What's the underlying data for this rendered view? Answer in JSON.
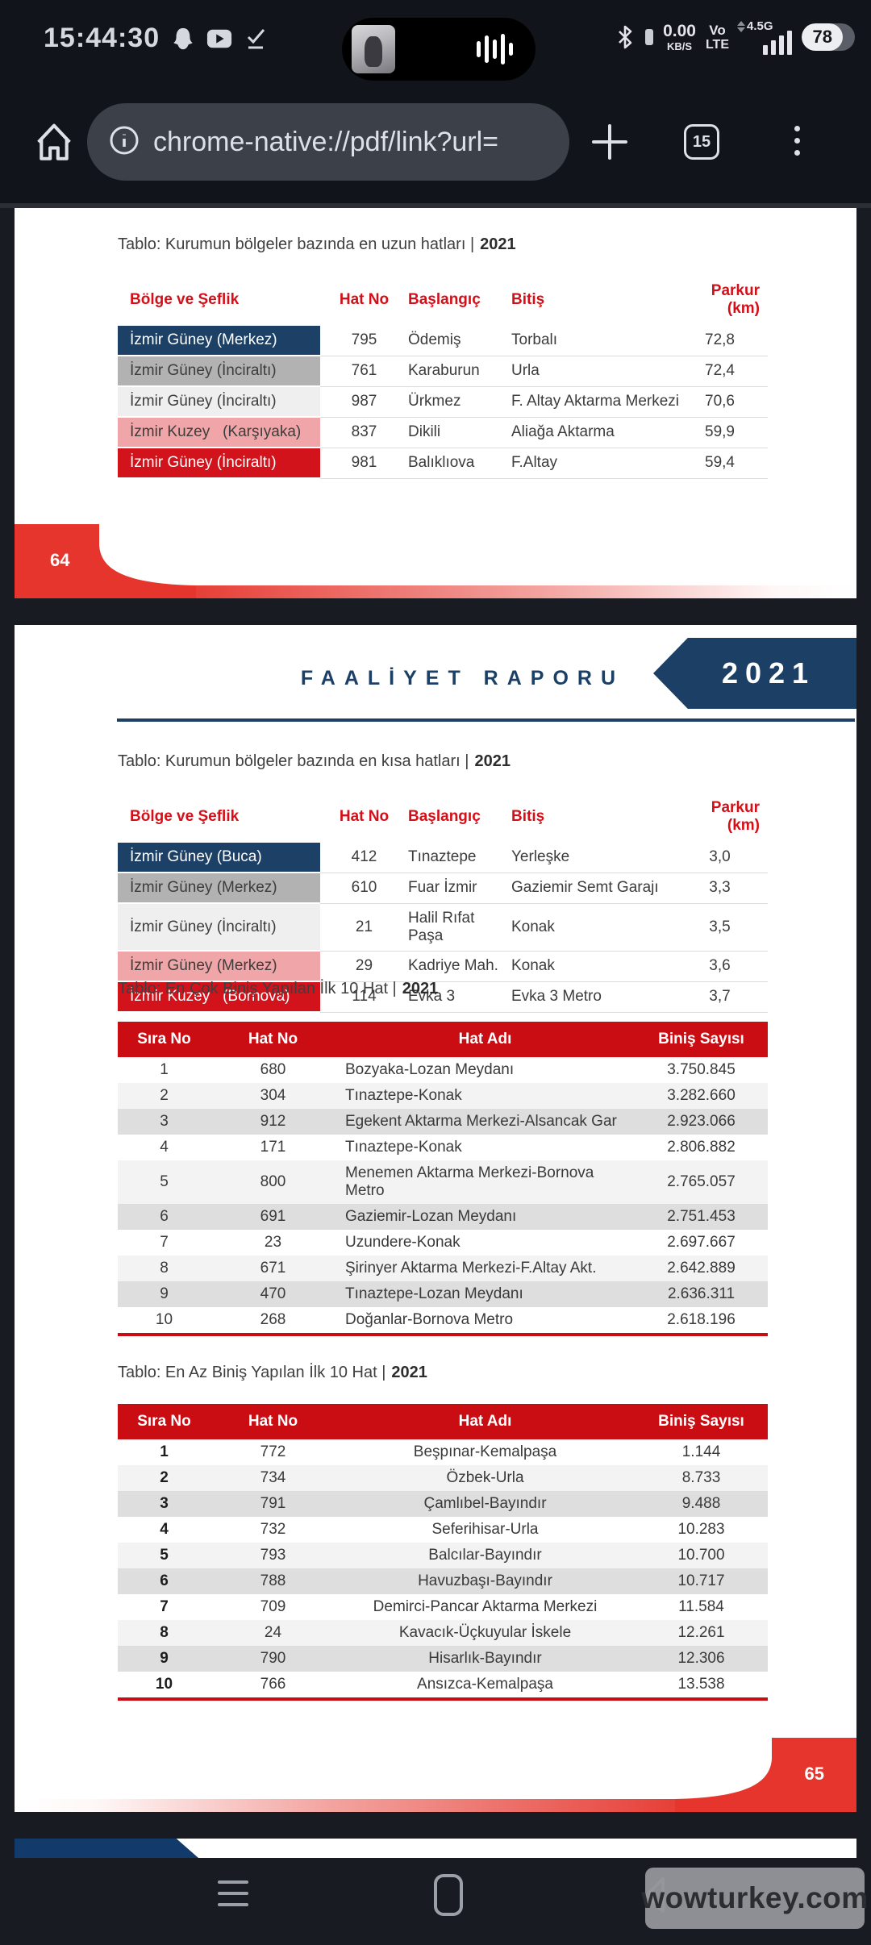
{
  "status_bar": {
    "time": "15:44:30",
    "data_rate": "0.00",
    "data_rate_unit": "KB/S",
    "volte_line1": "Vo",
    "volte_line2": "LTE",
    "network_label": "4.5G",
    "battery_percent": "78"
  },
  "toolbar": {
    "url": "chrome-native://pdf/link?url=",
    "tab_count": "15"
  },
  "pdf": {
    "page64": {
      "page_number": "64",
      "table_title": "Tablo: Kurumun bölgeler bazında en uzun hatları |",
      "table_title_year": "2021",
      "columns": {
        "bolge": "Bölge ve Şeflik",
        "hat_no": "Hat No",
        "baslangic": "Başlangıç",
        "bitis": "Bitiş",
        "parkur": "Parkur (km)"
      },
      "rows": [
        {
          "bolge": "İzmir Güney (Merkez)",
          "hat_no": "795",
          "baslangic": "Ödemiş",
          "bitis": "Torbalı",
          "parkur": "72,8",
          "color": "navy"
        },
        {
          "bolge": "İzmir Güney (İnciraltı)",
          "hat_no": "761",
          "baslangic": "Karaburun",
          "bitis": "Urla",
          "parkur": "72,4",
          "color": "gray"
        },
        {
          "bolge": "İzmir Güney (İnciraltı)",
          "hat_no": "987",
          "baslangic": "Ürkmez",
          "bitis": "F. Altay Aktarma Merkezi",
          "parkur": "70,6",
          "color": "lightgray"
        },
        {
          "bolge": "İzmir Kuzey   (Karşıyaka)",
          "hat_no": "837",
          "baslangic": "Dikili",
          "bitis": "Aliağa Aktarma",
          "parkur": "59,9",
          "color": "pink"
        },
        {
          "bolge": "İzmir Güney (İnciraltı)",
          "hat_no": "981",
          "baslangic": "Balıklıova",
          "bitis": "F.Altay",
          "parkur": "59,4",
          "color": "red"
        }
      ]
    },
    "page65": {
      "page_number": "65",
      "header_title": "FAALİYET RAPORU",
      "header_year": "2021",
      "short_table": {
        "title": "Tablo: Kurumun bölgeler bazında en kısa hatları |",
        "title_year": "2021",
        "columns": {
          "bolge": "Bölge ve Şeflik",
          "hat_no": "Hat No",
          "baslangic": "Başlangıç",
          "bitis": "Bitiş",
          "parkur": "Parkur (km)"
        },
        "rows": [
          {
            "bolge": "İzmir Güney (Buca)",
            "hat_no": "412",
            "baslangic": "Tınaztepe",
            "bitis": "Yerleşke",
            "parkur": "3,0",
            "color": "navy"
          },
          {
            "bolge": "İzmir Güney (Merkez)",
            "hat_no": "610",
            "baslangic": "Fuar İzmir",
            "bitis": "Gaziemir Semt Garajı",
            "parkur": "3,3",
            "color": "gray"
          },
          {
            "bolge": "İzmir Güney (İnciraltı)",
            "hat_no": "21",
            "baslangic": "Halil Rıfat Paşa",
            "bitis": "Konak",
            "parkur": "3,5",
            "color": "lightgray"
          },
          {
            "bolge": "İzmir Güney (Merkez)",
            "hat_no": "29",
            "baslangic": "Kadriye Mah.",
            "bitis": "Konak",
            "parkur": "3,6",
            "color": "pink"
          },
          {
            "bolge": "İzmir Kuzey   (Bornova)",
            "hat_no": "114",
            "baslangic": "Evka 3",
            "bitis": "Evka 3 Metro",
            "parkur": "3,7",
            "color": "red"
          }
        ]
      },
      "most_boarded": {
        "title": "Tablo: En Çok Biniş Yapılan İlk 10 Hat |",
        "title_year": "2021",
        "columns": [
          "Sıra No",
          "Hat No",
          "Hat Adı",
          "Biniş Sayısı"
        ],
        "rows": [
          [
            "1",
            "680",
            "Bozyaka-Lozan Meydanı",
            "3.750.845"
          ],
          [
            "2",
            "304",
            "Tınaztepe-Konak",
            "3.282.660"
          ],
          [
            "3",
            "912",
            "Egekent Aktarma Merkezi-Alsancak Gar",
            "2.923.066"
          ],
          [
            "4",
            "171",
            "Tınaztepe-Konak",
            "2.806.882"
          ],
          [
            "5",
            "800",
            "Menemen Aktarma Merkezi-Bornova Metro",
            "2.765.057"
          ],
          [
            "6",
            "691",
            "Gaziemir-Lozan Meydanı",
            "2.751.453"
          ],
          [
            "7",
            "23",
            "Uzundere-Konak",
            "2.697.667"
          ],
          [
            "8",
            "671",
            "Şirinyer Aktarma Merkezi-F.Altay Akt.",
            "2.642.889"
          ],
          [
            "9",
            "470",
            "Tınaztepe-Lozan Meydanı",
            "2.636.311"
          ],
          [
            "10",
            "268",
            "Doğanlar-Bornova Metro",
            "2.618.196"
          ]
        ]
      },
      "least_boarded": {
        "title": "Tablo: En Az Biniş Yapılan İlk 10 Hat |",
        "title_year": "2021",
        "columns": [
          "Sıra No",
          "Hat No",
          "Hat Adı",
          "Biniş Sayısı"
        ],
        "rows": [
          [
            "1",
            "772",
            "Beşpınar-Kemalpaşa",
            "1.144"
          ],
          [
            "2",
            "734",
            "Özbek-Urla",
            "8.733"
          ],
          [
            "3",
            "791",
            "Çamlıbel-Bayındır",
            "9.488"
          ],
          [
            "4",
            "732",
            "Seferihisar-Urla",
            "10.283"
          ],
          [
            "5",
            "793",
            "Balcılar-Bayındır",
            "10.700"
          ],
          [
            "6",
            "788",
            "Havuzbaşı-Bayındır",
            "10.717"
          ],
          [
            "7",
            "709",
            "Demirci-Pancar Aktarma Merkezi",
            "11.584"
          ],
          [
            "8",
            "24",
            "Kavacık-Üçkuyular İskele",
            "12.261"
          ],
          [
            "9",
            "790",
            "Hisarlık-Bayındır",
            "12.306"
          ],
          [
            "10",
            "766",
            "Ansızca-Kemalpaşa",
            "13.538"
          ]
        ]
      }
    }
  },
  "nav_bar": {
    "watermark": "wowturkey.com"
  },
  "colors": {
    "accent_red": "#c90d13",
    "navy": "#1c4065",
    "swoosh_red": "#e5352c"
  }
}
